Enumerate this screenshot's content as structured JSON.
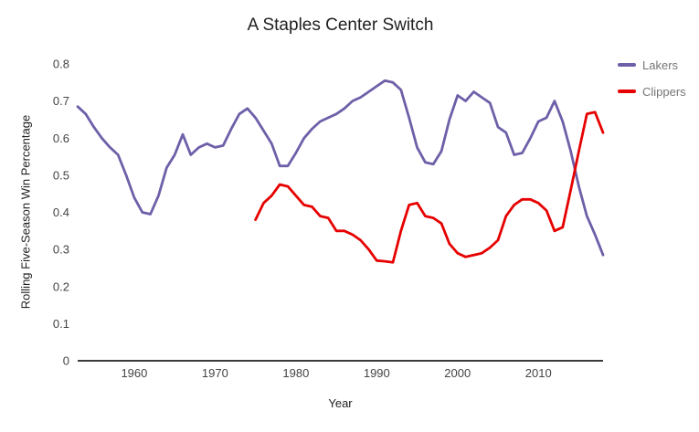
{
  "chart": {
    "title": "A Staples Center Switch",
    "xlabel": "Year",
    "ylabel": "Rolling Five-Season Win Percentage"
  },
  "chart_data": {
    "type": "line",
    "title": "A Staples Center Switch",
    "xlabel": "Year",
    "ylabel": "Rolling Five-Season Win Percentage",
    "xlim": [
      1953,
      2018
    ],
    "ylim": [
      0,
      0.8
    ],
    "x_ticks": [
      1960,
      1970,
      1980,
      1990,
      2000,
      2010
    ],
    "y_ticks": [
      "0",
      "0.1",
      "0.2",
      "0.3",
      "0.4",
      "0.5",
      "0.6",
      "0.7",
      "0.8"
    ],
    "grid": false,
    "legend_position": "right",
    "series": [
      {
        "name": "Lakers",
        "color": "#6e5fa8",
        "start_year": 1953,
        "values": [
          0.685,
          0.665,
          0.63,
          0.6,
          0.575,
          0.555,
          0.5,
          0.44,
          0.4,
          0.395,
          0.445,
          0.52,
          0.555,
          0.61,
          0.555,
          0.575,
          0.585,
          0.575,
          0.58,
          0.625,
          0.665,
          0.68,
          0.655,
          0.62,
          0.585,
          0.525,
          0.525,
          0.56,
          0.6,
          0.625,
          0.645,
          0.655,
          0.665,
          0.68,
          0.7,
          0.71,
          0.725,
          0.74,
          0.755,
          0.75,
          0.73,
          0.655,
          0.575,
          0.535,
          0.53,
          0.565,
          0.65,
          0.715,
          0.7,
          0.725,
          0.71,
          0.695,
          0.63,
          0.615,
          0.555,
          0.56,
          0.6,
          0.645,
          0.655,
          0.7,
          0.645,
          0.565,
          0.47,
          0.39,
          0.34,
          0.285
        ]
      },
      {
        "name": "Clippers",
        "color": "#e60000",
        "start_year": 1975,
        "values": [
          0.38,
          0.425,
          0.445,
          0.475,
          0.47,
          0.445,
          0.42,
          0.415,
          0.39,
          0.385,
          0.35,
          0.35,
          0.34,
          0.325,
          0.3,
          0.27,
          0.268,
          0.265,
          0.35,
          0.42,
          0.425,
          0.39,
          0.385,
          0.37,
          0.315,
          0.29,
          0.28,
          0.285,
          0.29,
          0.305,
          0.325,
          0.39,
          0.42,
          0.435,
          0.435,
          0.425,
          0.405,
          0.35,
          0.36,
          0.46,
          0.565,
          0.665,
          0.67,
          0.615
        ]
      }
    ]
  }
}
